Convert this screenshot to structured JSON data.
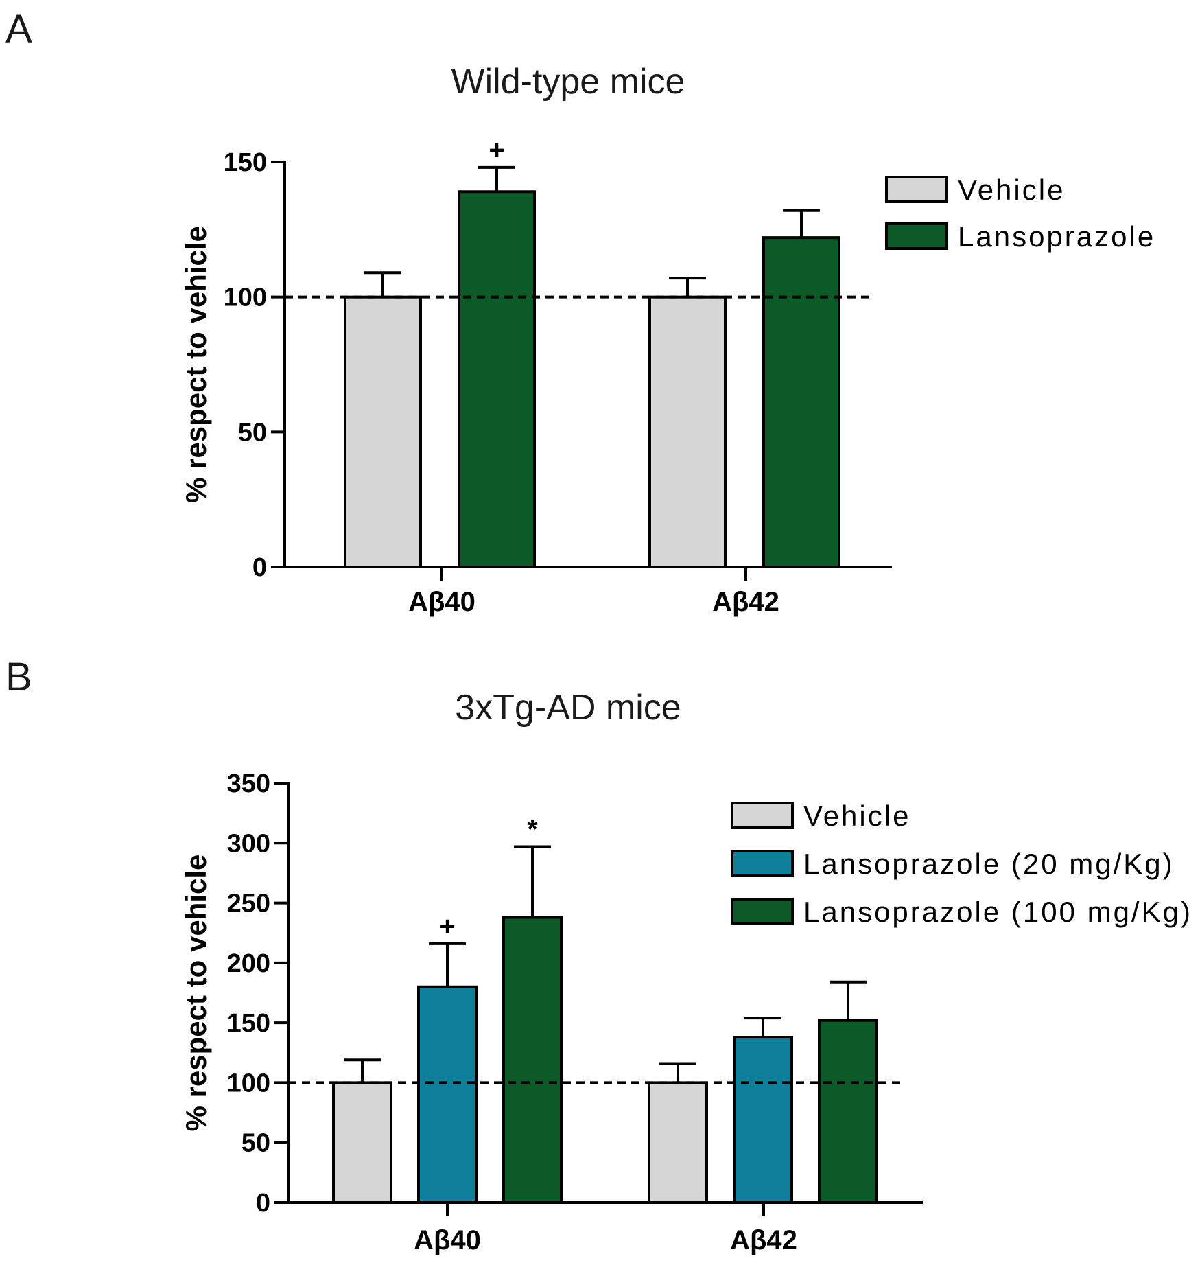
{
  "chart_data": [
    {
      "type": "bar",
      "panel": "A",
      "title": "Wild-type mice",
      "ylabel": "% respect to vehicle",
      "xlabel": "",
      "ylim": [
        0,
        150
      ],
      "yticks": [
        0,
        50,
        100,
        150
      ],
      "reference_line": 100,
      "categories": [
        "Aβ40",
        "Aβ42"
      ],
      "series": [
        {
          "name": "Vehicle",
          "color": "#d6d6d6",
          "values": [
            100,
            100
          ],
          "errors": [
            9,
            7
          ]
        },
        {
          "name": "Lansoprazole",
          "color": "#0d5a29",
          "values": [
            139,
            122
          ],
          "errors": [
            9,
            10
          ]
        }
      ],
      "annotations": [
        {
          "category": 0,
          "series": 1,
          "text": "+"
        }
      ],
      "legend_position": "top-right"
    },
    {
      "type": "bar",
      "panel": "B",
      "title": "3xTg-AD mice",
      "ylabel": "% respect to vehicle",
      "xlabel": "",
      "ylim": [
        0,
        350
      ],
      "yticks": [
        0,
        50,
        100,
        150,
        200,
        250,
        300,
        350
      ],
      "reference_line": 100,
      "categories": [
        "Aβ40",
        "Aβ42"
      ],
      "series": [
        {
          "name": "Vehicle",
          "color": "#d6d6d6",
          "values": [
            100,
            100
          ],
          "errors": [
            19,
            16
          ]
        },
        {
          "name": "Lansoprazole (20 mg/Kg)",
          "color": "#0e7f9b",
          "values": [
            180,
            138
          ],
          "errors": [
            36,
            16
          ]
        },
        {
          "name": "Lansoprazole (100 mg/Kg)",
          "color": "#0d5a29",
          "values": [
            238,
            152
          ],
          "errors": [
            59,
            32
          ]
        }
      ],
      "annotations": [
        {
          "category": 0,
          "series": 1,
          "text": "+"
        },
        {
          "category": 0,
          "series": 2,
          "text": "*"
        }
      ],
      "legend_position": "top-right"
    }
  ]
}
